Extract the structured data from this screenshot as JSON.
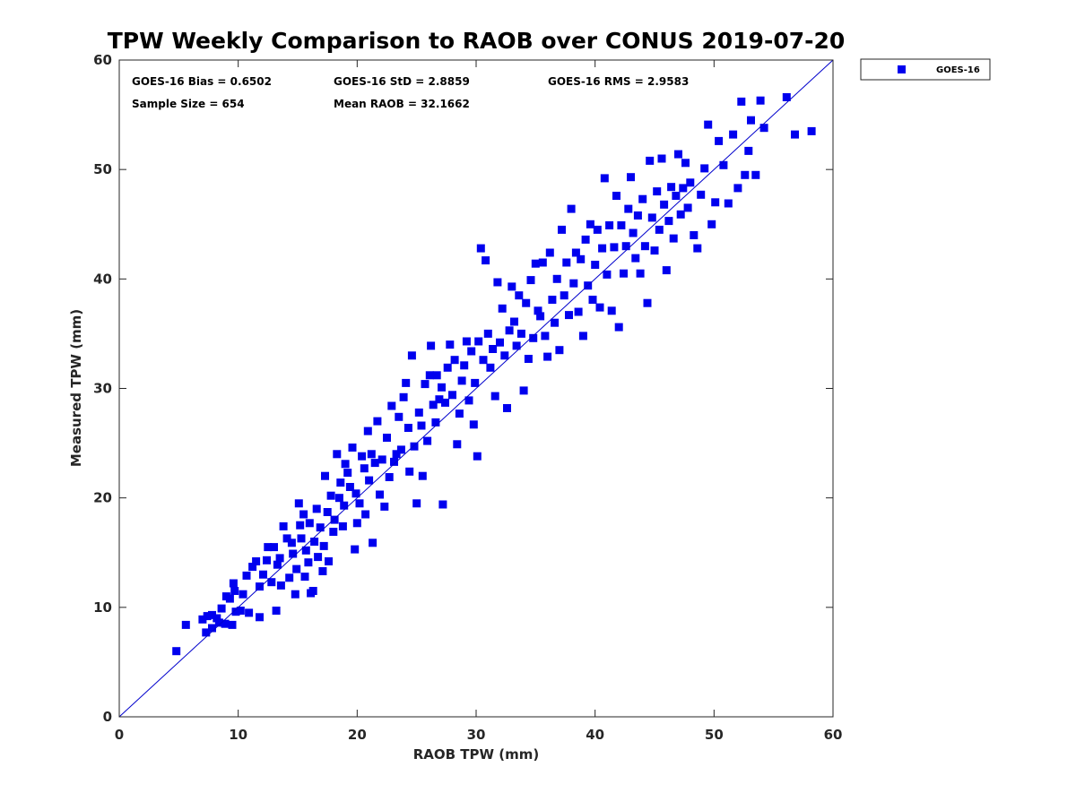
{
  "chart_data": {
    "type": "scatter",
    "title": "TPW Weekly Comparison to RAOB over CONUS 2019-07-20",
    "xlabel": "RAOB TPW (mm)",
    "ylabel": "Measured TPW (mm)",
    "xlim": [
      0,
      60
    ],
    "ylim": [
      0,
      60
    ],
    "xticks": [
      "0",
      "10",
      "20",
      "30",
      "40",
      "50",
      "60"
    ],
    "yticks": [
      "0",
      "10",
      "20",
      "30",
      "40",
      "50",
      "60"
    ],
    "grid": false,
    "legend_position": "outside-top-right",
    "reference_line": {
      "from": [
        0,
        0
      ],
      "to": [
        60,
        60
      ],
      "color": "#0000cc"
    },
    "stats": [
      {
        "id": "bias",
        "text": "GOES-16 Bias = 0.6502"
      },
      {
        "id": "std",
        "text": "GOES-16 StD = 2.8859"
      },
      {
        "id": "rms",
        "text": "GOES-16 RMS = 2.9583"
      },
      {
        "id": "sample",
        "text": "Sample Size = 654"
      },
      {
        "id": "mean",
        "text": "Mean RAOB = 32.1662"
      }
    ],
    "series": [
      {
        "name": "GOES-16",
        "color": "#0000ee",
        "marker": "square",
        "points": [
          [
            4.8,
            6.0
          ],
          [
            5.6,
            8.4
          ],
          [
            7.0,
            8.9
          ],
          [
            7.3,
            7.7
          ],
          [
            7.4,
            9.2
          ],
          [
            7.8,
            9.3
          ],
          [
            7.8,
            8.1
          ],
          [
            8.2,
            9.0
          ],
          [
            8.4,
            8.6
          ],
          [
            8.6,
            9.9
          ],
          [
            8.9,
            8.5
          ],
          [
            9.0,
            11.0
          ],
          [
            9.3,
            10.8
          ],
          [
            9.5,
            8.4
          ],
          [
            9.6,
            12.2
          ],
          [
            9.7,
            11.5
          ],
          [
            9.8,
            9.6
          ],
          [
            10.2,
            9.7
          ],
          [
            10.4,
            11.2
          ],
          [
            10.7,
            12.9
          ],
          [
            10.9,
            9.5
          ],
          [
            11.2,
            13.7
          ],
          [
            11.5,
            14.2
          ],
          [
            11.8,
            11.9
          ],
          [
            11.8,
            9.1
          ],
          [
            12.1,
            13.0
          ],
          [
            12.4,
            14.3
          ],
          [
            12.5,
            15.5
          ],
          [
            12.8,
            12.3
          ],
          [
            13.0,
            15.5
          ],
          [
            13.2,
            9.7
          ],
          [
            13.3,
            13.9
          ],
          [
            13.5,
            14.5
          ],
          [
            13.6,
            12.0
          ],
          [
            13.8,
            17.4
          ],
          [
            14.1,
            16.3
          ],
          [
            14.3,
            12.7
          ],
          [
            14.5,
            15.9
          ],
          [
            14.6,
            14.9
          ],
          [
            14.8,
            11.2
          ],
          [
            14.9,
            13.5
          ],
          [
            15.1,
            19.5
          ],
          [
            15.2,
            17.5
          ],
          [
            15.3,
            16.3
          ],
          [
            15.5,
            18.5
          ],
          [
            15.6,
            12.8
          ],
          [
            15.7,
            15.2
          ],
          [
            15.9,
            14.1
          ],
          [
            16.0,
            17.7
          ],
          [
            16.1,
            11.3
          ],
          [
            16.3,
            11.5
          ],
          [
            16.4,
            16.0
          ],
          [
            16.6,
            19.0
          ],
          [
            16.7,
            14.6
          ],
          [
            16.9,
            17.3
          ],
          [
            17.1,
            13.3
          ],
          [
            17.2,
            15.6
          ],
          [
            17.3,
            22.0
          ],
          [
            17.5,
            18.7
          ],
          [
            17.6,
            14.2
          ],
          [
            17.8,
            20.2
          ],
          [
            18.0,
            16.9
          ],
          [
            18.1,
            18.0
          ],
          [
            18.3,
            24.0
          ],
          [
            18.5,
            20.0
          ],
          [
            18.6,
            21.4
          ],
          [
            18.8,
            17.4
          ],
          [
            18.9,
            19.3
          ],
          [
            19.0,
            23.1
          ],
          [
            19.2,
            22.3
          ],
          [
            19.4,
            21.0
          ],
          [
            19.6,
            24.6
          ],
          [
            19.8,
            15.3
          ],
          [
            19.9,
            20.4
          ],
          [
            20.0,
            17.7
          ],
          [
            20.2,
            19.5
          ],
          [
            20.4,
            23.8
          ],
          [
            20.6,
            22.7
          ],
          [
            20.7,
            18.5
          ],
          [
            20.9,
            26.1
          ],
          [
            21.0,
            21.6
          ],
          [
            21.2,
            24.0
          ],
          [
            21.3,
            15.9
          ],
          [
            21.5,
            23.2
          ],
          [
            21.7,
            27.0
          ],
          [
            21.9,
            20.3
          ],
          [
            22.1,
            23.5
          ],
          [
            22.3,
            19.2
          ],
          [
            22.5,
            25.5
          ],
          [
            22.7,
            21.9
          ],
          [
            22.9,
            28.4
          ],
          [
            23.1,
            23.3
          ],
          [
            23.3,
            24.0
          ],
          [
            23.5,
            27.4
          ],
          [
            23.7,
            24.4
          ],
          [
            23.9,
            29.2
          ],
          [
            24.1,
            30.5
          ],
          [
            24.3,
            26.4
          ],
          [
            24.4,
            22.4
          ],
          [
            24.6,
            33.0
          ],
          [
            24.8,
            24.7
          ],
          [
            25.0,
            19.5
          ],
          [
            25.2,
            27.8
          ],
          [
            25.4,
            26.6
          ],
          [
            25.5,
            22.0
          ],
          [
            25.7,
            30.4
          ],
          [
            25.9,
            25.2
          ],
          [
            26.1,
            31.2
          ],
          [
            26.2,
            33.9
          ],
          [
            26.4,
            28.5
          ],
          [
            26.6,
            26.9
          ],
          [
            26.7,
            31.2
          ],
          [
            26.9,
            29.0
          ],
          [
            27.1,
            30.1
          ],
          [
            27.2,
            19.4
          ],
          [
            27.4,
            28.7
          ],
          [
            27.6,
            31.9
          ],
          [
            27.8,
            34.0
          ],
          [
            28.0,
            29.4
          ],
          [
            28.2,
            32.6
          ],
          [
            28.4,
            24.9
          ],
          [
            28.6,
            27.7
          ],
          [
            28.8,
            30.7
          ],
          [
            29.0,
            32.1
          ],
          [
            29.2,
            34.3
          ],
          [
            29.4,
            28.9
          ],
          [
            29.6,
            33.4
          ],
          [
            29.8,
            26.7
          ],
          [
            29.9,
            30.5
          ],
          [
            30.1,
            23.8
          ],
          [
            30.2,
            34.3
          ],
          [
            30.4,
            42.8
          ],
          [
            30.6,
            32.6
          ],
          [
            30.8,
            41.7
          ],
          [
            31.0,
            35.0
          ],
          [
            31.2,
            31.9
          ],
          [
            31.4,
            33.6
          ],
          [
            31.6,
            29.3
          ],
          [
            31.8,
            39.7
          ],
          [
            32.0,
            34.2
          ],
          [
            32.2,
            37.3
          ],
          [
            32.4,
            33.0
          ],
          [
            32.6,
            28.2
          ],
          [
            32.8,
            35.3
          ],
          [
            33.0,
            39.3
          ],
          [
            33.2,
            36.1
          ],
          [
            33.4,
            33.9
          ],
          [
            33.6,
            38.5
          ],
          [
            33.8,
            35.0
          ],
          [
            34.0,
            29.8
          ],
          [
            34.2,
            37.8
          ],
          [
            34.4,
            32.7
          ],
          [
            34.6,
            39.9
          ],
          [
            34.8,
            34.6
          ],
          [
            35.0,
            41.4
          ],
          [
            35.2,
            37.1
          ],
          [
            35.4,
            36.6
          ],
          [
            35.6,
            41.5
          ],
          [
            35.8,
            34.8
          ],
          [
            36.0,
            32.9
          ],
          [
            36.2,
            42.4
          ],
          [
            36.4,
            38.1
          ],
          [
            36.6,
            36.0
          ],
          [
            36.8,
            40.0
          ],
          [
            37.0,
            33.5
          ],
          [
            37.2,
            44.5
          ],
          [
            37.4,
            38.5
          ],
          [
            37.6,
            41.5
          ],
          [
            37.8,
            36.7
          ],
          [
            38.0,
            46.4
          ],
          [
            38.2,
            39.6
          ],
          [
            38.4,
            42.4
          ],
          [
            38.6,
            37.0
          ],
          [
            38.8,
            41.8
          ],
          [
            39.0,
            34.8
          ],
          [
            39.2,
            43.6
          ],
          [
            39.4,
            39.4
          ],
          [
            39.6,
            45.0
          ],
          [
            39.8,
            38.1
          ],
          [
            40.0,
            41.3
          ],
          [
            40.2,
            44.5
          ],
          [
            40.4,
            37.4
          ],
          [
            40.6,
            42.8
          ],
          [
            40.8,
            49.2
          ],
          [
            41.0,
            40.4
          ],
          [
            41.2,
            44.9
          ],
          [
            41.4,
            37.1
          ],
          [
            41.6,
            42.9
          ],
          [
            41.8,
            47.6
          ],
          [
            42.0,
            35.6
          ],
          [
            42.2,
            44.9
          ],
          [
            42.4,
            40.5
          ],
          [
            42.6,
            43.0
          ],
          [
            42.8,
            46.4
          ],
          [
            43.0,
            49.3
          ],
          [
            43.2,
            44.2
          ],
          [
            43.4,
            41.9
          ],
          [
            43.6,
            45.8
          ],
          [
            43.8,
            40.5
          ],
          [
            44.0,
            47.3
          ],
          [
            44.2,
            43.0
          ],
          [
            44.4,
            37.8
          ],
          [
            44.6,
            50.8
          ],
          [
            44.8,
            45.6
          ],
          [
            45.0,
            42.6
          ],
          [
            45.2,
            48.0
          ],
          [
            45.4,
            44.5
          ],
          [
            45.6,
            51.0
          ],
          [
            45.8,
            46.8
          ],
          [
            46.0,
            40.8
          ],
          [
            46.2,
            45.3
          ],
          [
            46.4,
            48.4
          ],
          [
            46.6,
            43.7
          ],
          [
            46.8,
            47.6
          ],
          [
            47.0,
            51.4
          ],
          [
            47.2,
            45.9
          ],
          [
            47.4,
            48.3
          ],
          [
            47.6,
            50.6
          ],
          [
            47.8,
            46.5
          ],
          [
            48.0,
            48.8
          ],
          [
            48.3,
            44.0
          ],
          [
            48.6,
            42.8
          ],
          [
            48.9,
            47.7
          ],
          [
            49.2,
            50.1
          ],
          [
            49.5,
            54.1
          ],
          [
            49.8,
            45.0
          ],
          [
            50.1,
            47.0
          ],
          [
            50.4,
            52.6
          ],
          [
            50.8,
            50.4
          ],
          [
            51.2,
            46.9
          ],
          [
            51.6,
            53.2
          ],
          [
            52.0,
            48.3
          ],
          [
            52.3,
            56.2
          ],
          [
            52.6,
            49.5
          ],
          [
            52.9,
            51.7
          ],
          [
            53.1,
            54.5
          ],
          [
            53.5,
            49.5
          ],
          [
            53.9,
            56.3
          ],
          [
            54.2,
            53.8
          ],
          [
            56.1,
            56.6
          ],
          [
            56.8,
            53.2
          ],
          [
            58.2,
            53.5
          ]
        ]
      }
    ]
  }
}
